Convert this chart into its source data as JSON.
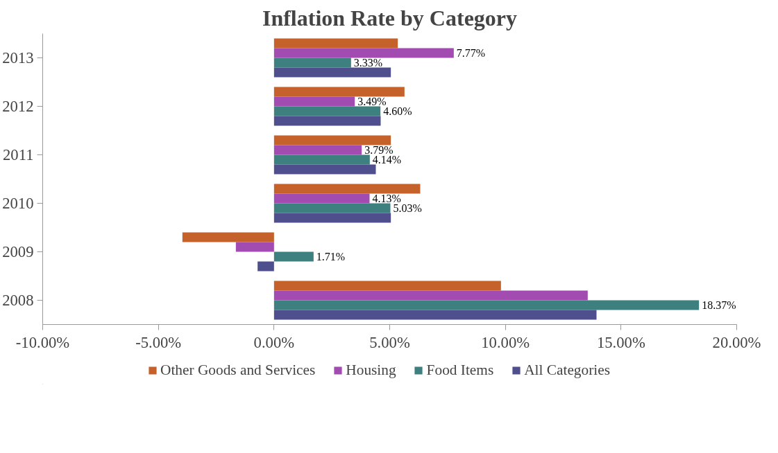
{
  "chart_data": {
    "type": "bar",
    "orientation": "horizontal",
    "title": "Inflation Rate by Category",
    "categories": [
      "2013",
      "2012",
      "2011",
      "2010",
      "2009",
      "2008"
    ],
    "series": [
      {
        "name": "Other Goods and Services",
        "color": "#c5622c",
        "values": [
          5.35,
          5.64,
          5.05,
          6.32,
          -3.96,
          9.81
        ]
      },
      {
        "name": "Housing",
        "color": "#a24bb0",
        "values": [
          7.77,
          3.49,
          3.79,
          4.13,
          -1.65,
          13.56
        ],
        "value_labels": [
          "7.77%",
          "3.49%",
          "3.79%",
          "4.13%",
          null,
          null
        ]
      },
      {
        "name": "Food Items",
        "color": "#3e7f80",
        "values": [
          3.33,
          4.6,
          4.14,
          5.03,
          1.71,
          18.37
        ],
        "value_labels": [
          "3.33%",
          "4.60%",
          "4.14%",
          "5.03%",
          "1.71%",
          "18.37%"
        ]
      },
      {
        "name": "All Categories",
        "color": "#4f4f8e",
        "values": [
          5.05,
          4.61,
          4.4,
          5.05,
          -0.71,
          13.94
        ]
      }
    ],
    "xlim": [
      -10,
      20
    ],
    "xticks": [
      {
        "value": -10,
        "label": "-10.00%"
      },
      {
        "value": -5,
        "label": "-5.00%"
      },
      {
        "value": 0,
        "label": "0.00%"
      },
      {
        "value": 5,
        "label": "5.00%"
      },
      {
        "value": 10,
        "label": "10.00%"
      },
      {
        "value": 15,
        "label": "15.00%"
      },
      {
        "value": 20,
        "label": "20.00%"
      }
    ],
    "grid": false,
    "legend": "bottom"
  }
}
